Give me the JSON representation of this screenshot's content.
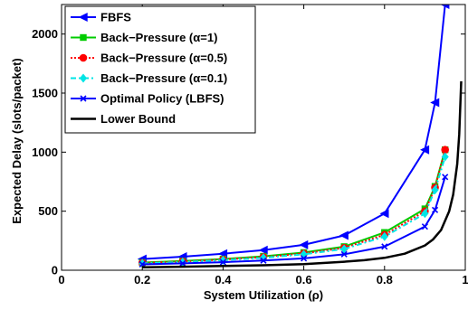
{
  "chart_data": {
    "type": "line",
    "xlabel": "System Utilization (ρ)",
    "ylabel": "Expected Delay (slots/packet)",
    "xlim": [
      0,
      1
    ],
    "ylim": [
      0,
      2250
    ],
    "xticks": [
      0,
      0.2,
      0.4,
      0.6,
      0.8,
      1
    ],
    "xtick_labels": [
      "0",
      "0.2",
      "0.4",
      "0.6",
      "0.8",
      "1"
    ],
    "yticks": [
      0,
      500,
      1000,
      1500,
      2000
    ],
    "ytick_labels": [
      "0",
      "500",
      "1000",
      "1500",
      "2000"
    ],
    "grid": false,
    "legend_position": "top-left",
    "series": [
      {
        "name": "FBFS",
        "color": "#0000ff",
        "marker": "triangle-left",
        "dash": "solid",
        "x": [
          0.2,
          0.3,
          0.4,
          0.5,
          0.6,
          0.7,
          0.8,
          0.9,
          0.925,
          0.95
        ],
        "y": [
          95,
          115,
          140,
          170,
          215,
          295,
          480,
          1020,
          1420,
          2250
        ]
      },
      {
        "name": "Back−Pressure (α=1)",
        "color": "#00cc00",
        "marker": "square",
        "dash": "solid",
        "x": [
          0.2,
          0.3,
          0.4,
          0.5,
          0.6,
          0.7,
          0.8,
          0.9,
          0.925,
          0.95
        ],
        "y": [
          65,
          78,
          95,
          118,
          150,
          200,
          320,
          520,
          710,
          1020
        ]
      },
      {
        "name": "Back−Pressure (α=0.5)",
        "color": "#ff0000",
        "marker": "circle",
        "dash": "dotted",
        "x": [
          0.2,
          0.3,
          0.4,
          0.5,
          0.6,
          0.7,
          0.8,
          0.9,
          0.925,
          0.95
        ],
        "y": [
          62,
          74,
          90,
          112,
          142,
          190,
          300,
          500,
          700,
          1020
        ]
      },
      {
        "name": "Back−Pressure (α=0.1)",
        "color": "#00e5e5",
        "marker": "diamond",
        "dash": "dashdot",
        "x": [
          0.2,
          0.3,
          0.4,
          0.5,
          0.6,
          0.7,
          0.8,
          0.9,
          0.925,
          0.95
        ],
        "y": [
          58,
          70,
          85,
          105,
          135,
          180,
          285,
          480,
          680,
          960
        ]
      },
      {
        "name": "Optimal Policy (LBFS)",
        "color": "#0000ff",
        "marker": "x",
        "dash": "solid",
        "x": [
          0.2,
          0.3,
          0.4,
          0.5,
          0.6,
          0.7,
          0.8,
          0.9,
          0.925,
          0.95
        ],
        "y": [
          50,
          58,
          68,
          82,
          100,
          135,
          200,
          370,
          510,
          790
        ]
      },
      {
        "name": "Lower Bound",
        "color": "#000000",
        "marker": "none",
        "dash": "solid",
        "width": 2.5,
        "x": [
          0.2,
          0.3,
          0.4,
          0.5,
          0.6,
          0.7,
          0.75,
          0.8,
          0.85,
          0.9,
          0.92,
          0.94,
          0.96,
          0.97,
          0.98,
          0.985,
          0.99
        ],
        "y": [
          25,
          30,
          36,
          42,
          52,
          72,
          85,
          105,
          140,
          210,
          260,
          340,
          500,
          640,
          900,
          1150,
          1600
        ]
      }
    ]
  }
}
